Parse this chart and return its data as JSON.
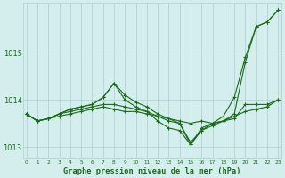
{
  "xlabel": "Graphe pression niveau de la mer (hPa)",
  "bg_color": "#d4eeed",
  "grid_color": "#aacfcf",
  "line_color": "#1a6b1a",
  "hours": [
    0,
    1,
    2,
    3,
    4,
    5,
    6,
    7,
    8,
    9,
    10,
    11,
    12,
    13,
    14,
    15,
    16,
    17,
    18,
    19,
    20,
    21,
    22,
    23
  ],
  "series": [
    [
      1013.7,
      1013.55,
      1013.6,
      1013.65,
      1013.7,
      1013.75,
      1013.8,
      1013.85,
      1013.8,
      1013.75,
      1013.75,
      1013.7,
      1013.65,
      1013.6,
      1013.55,
      1013.5,
      1013.55,
      1013.5,
      1013.55,
      1013.6,
      1013.9,
      1013.9,
      1013.9,
      1014.0
    ],
    [
      1013.7,
      1013.55,
      1013.6,
      1013.7,
      1013.75,
      1013.8,
      1013.85,
      1013.9,
      1013.9,
      1013.85,
      1013.8,
      1013.75,
      1013.65,
      1013.55,
      1013.5,
      1013.05,
      1013.35,
      1013.45,
      1013.55,
      1013.65,
      1013.75,
      1013.8,
      1013.85,
      1014.0
    ],
    [
      1013.7,
      1013.55,
      1013.6,
      1013.7,
      1013.8,
      1013.85,
      1013.9,
      1014.05,
      1014.35,
      1014.0,
      1013.85,
      1013.75,
      1013.55,
      1013.4,
      1013.35,
      1013.05,
      1013.4,
      1013.5,
      1013.55,
      1013.7,
      1014.8,
      1015.55,
      1015.65,
      1015.9
    ],
    [
      1013.7,
      1013.55,
      1013.6,
      1013.7,
      1013.8,
      1013.85,
      1013.9,
      1014.05,
      1014.35,
      1014.1,
      1013.95,
      1013.85,
      1013.7,
      1013.6,
      1013.5,
      1013.1,
      1013.35,
      1013.5,
      1013.65,
      1014.05,
      1014.9,
      1015.55,
      1015.65,
      1015.9
    ]
  ],
  "ylim": [
    1012.75,
    1016.05
  ],
  "yticks": [
    1013,
    1014,
    1015
  ],
  "xlim": [
    -0.3,
    23.3
  ]
}
